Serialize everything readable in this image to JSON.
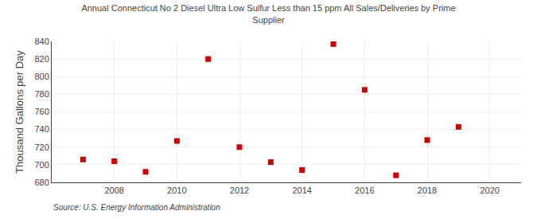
{
  "chart_data": {
    "type": "scatter",
    "title": "Annual Connecticut No 2 Diesel Ultra Low Sulfur Less than 15 ppm All Sales/Deliveries by Prime\nSupplier",
    "ylabel": "Thousand Gallons per Day",
    "annotations": [
      "Source: U.S. Energy Information Administration"
    ],
    "x": [
      2007,
      2008,
      2009,
      2010,
      2011,
      2012,
      2013,
      2014,
      2015,
      2016,
      2017,
      2018,
      2019
    ],
    "values": [
      706,
      704,
      692,
      727,
      820,
      720,
      703,
      694,
      837,
      785,
      688,
      728,
      743
    ],
    "color": "#cc0000",
    "marker": "square",
    "xlim": [
      2006.0,
      2021.0
    ],
    "xticks": [
      2008,
      2010,
      2012,
      2014,
      2016,
      2018,
      2020
    ],
    "ylim": [
      680,
      840
    ],
    "yticks": [
      680,
      700,
      720,
      740,
      760,
      780,
      800,
      820,
      840
    ],
    "grid": true
  }
}
